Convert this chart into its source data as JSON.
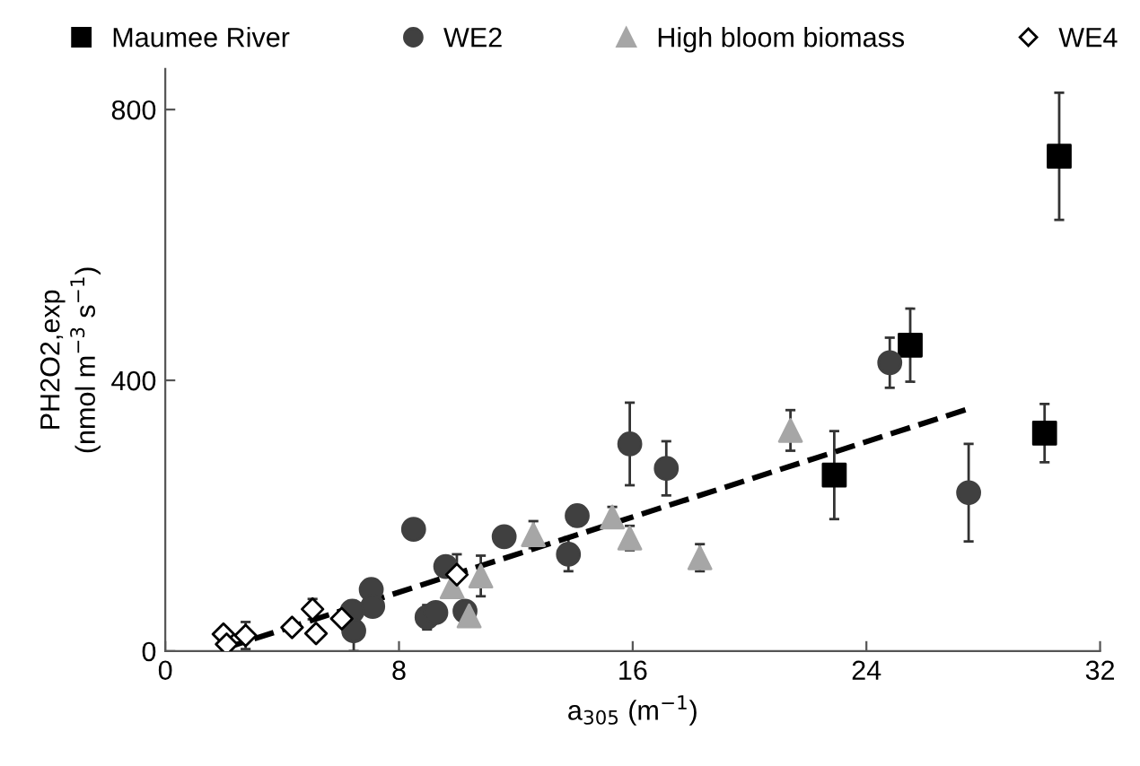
{
  "chart_data": {
    "type": "scatter",
    "xlabel": "a$_{305}$ (m$^{−1}$)",
    "ylabel": "PH2O2,exp\n(nmol m$^{−3}$ s$^{−1}$)",
    "xlim": [
      0,
      32
    ],
    "ylim": [
      0,
      860
    ],
    "xticks": [
      0,
      8,
      16,
      24,
      32
    ],
    "yticks": [
      0,
      400,
      800
    ],
    "grid": false,
    "legend": "top",
    "series": [
      {
        "name": "Maumee River",
        "color": "#000000",
        "marker": "square",
        "x": [
          22.9,
          25.5,
          30.1,
          30.6
        ],
        "values": [
          260,
          452,
          322,
          731
        ],
        "errors": [
          65,
          54,
          43,
          94
        ]
      },
      {
        "name": "WE2",
        "color": "#404040",
        "marker": "circle",
        "x": [
          15.9,
          17.15,
          24.8,
          27.5,
          14.1,
          13.8,
          11.6,
          8.5,
          9.6,
          7.05,
          7.1,
          6.4,
          6.45,
          8.96,
          9.26,
          10.26
        ],
        "values": [
          306,
          270,
          426,
          234,
          200,
          143,
          169,
          180,
          125,
          91,
          66,
          59,
          30,
          50,
          57,
          59
        ],
        "errors": [
          61,
          40,
          37,
          72,
          15,
          25,
          10,
          null,
          null,
          12,
          null,
          15,
          30,
          18,
          null,
          null
        ]
      },
      {
        "name": "High bloom biomass",
        "color": "#a6a6a6",
        "marker": "triangle",
        "x": [
          9.82,
          10.8,
          10.4,
          12.6,
          15.3,
          15.9,
          18.3,
          21.4
        ],
        "values": [
          95,
          111,
          52,
          172,
          198,
          167,
          138,
          326
        ],
        "errors": [
          null,
          30,
          null,
          20,
          15,
          18,
          20,
          30
        ]
      },
      {
        "name": "WE4",
        "color": "#ffffff",
        "marker": "diamond",
        "x": [
          1.99,
          2.1,
          2.75,
          4.34,
          5.04,
          5.16,
          6.04,
          9.98
        ],
        "values": [
          25,
          10,
          23,
          35,
          62,
          26,
          48,
          113
        ],
        "errors": [
          null,
          null,
          20,
          null,
          15,
          null,
          null,
          30
        ]
      },
      {
        "type": "line",
        "color": "#000000",
        "line_style": "dashed",
        "marker": "none",
        "x": [
          2.1,
          27.5
        ],
        "values": [
          5,
          358
        ]
      }
    ]
  }
}
